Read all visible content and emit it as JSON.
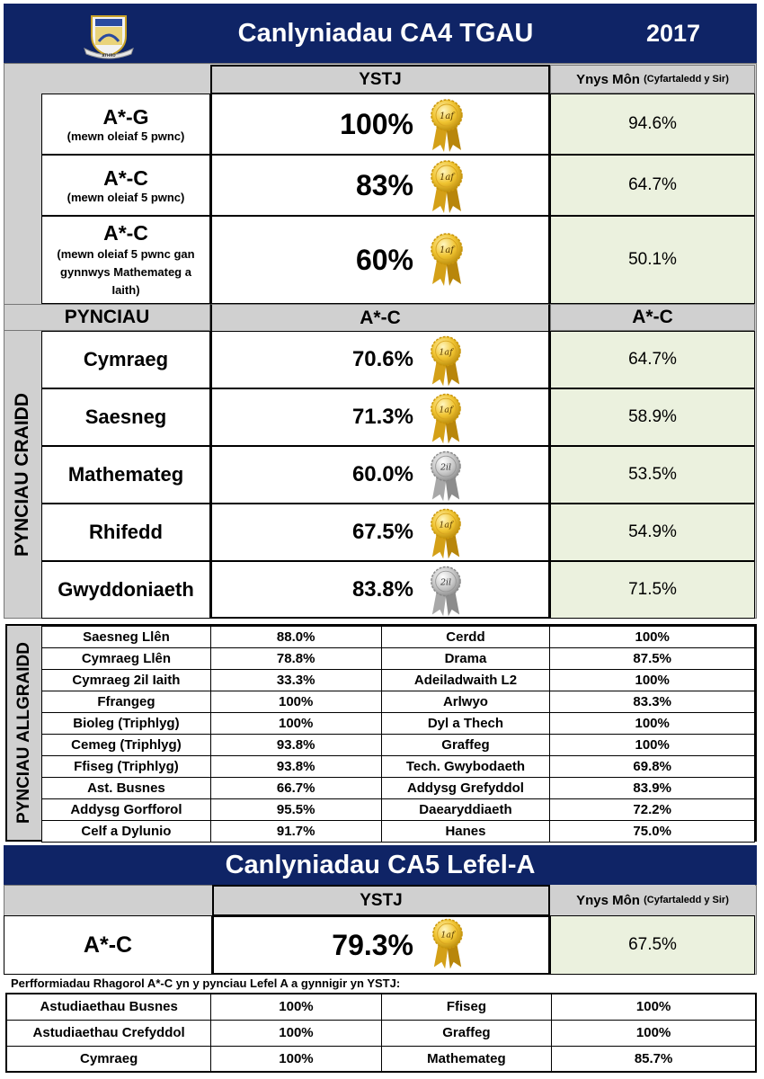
{
  "header": {
    "title": "Canlyniadau CA4 TGAU",
    "year": "2017",
    "crest_text": "ATHRO"
  },
  "gcse": {
    "col_school": "YSTJ",
    "col_county_main": "Ynys Môn",
    "col_county_sub": "(Cyfartaledd y Sir)",
    "rows": [
      {
        "title": "A*-G",
        "sub": "(mewn oleiaf 5 pwnc)",
        "value": "100%",
        "rank": "1af",
        "county": "94.6%"
      },
      {
        "title": "A*-C",
        "sub": "(mewn oleiaf 5 pwnc)",
        "value": "83%",
        "rank": "1af",
        "county": "64.7%"
      },
      {
        "title": "A*-C",
        "sub": "(mewn oleiaf 5 pwnc gan gynnwys Mathemateg a Iaith)",
        "value": "60%",
        "rank": "1af",
        "county": "50.1%"
      }
    ]
  },
  "core": {
    "col_subjects": "PYNCIAU",
    "col_school": "A*-C",
    "col_county": "A*-C",
    "side_label": "PYNCIAU CRAIDD",
    "rows": [
      {
        "subject": "Cymraeg",
        "value": "70.6%",
        "rank": "1af",
        "medal": "gold",
        "county": "64.7%"
      },
      {
        "subject": "Saesneg",
        "value": "71.3%",
        "rank": "1af",
        "medal": "gold",
        "county": "58.9%"
      },
      {
        "subject": "Mathemateg",
        "value": "60.0%",
        "rank": "2il",
        "medal": "silver",
        "county": "53.5%"
      },
      {
        "subject": "Rhifedd",
        "value": "67.5%",
        "rank": "1af",
        "medal": "gold",
        "county": "54.9%"
      },
      {
        "subject": "Gwyddoniaeth",
        "value": "83.8%",
        "rank": "2il",
        "medal": "silver",
        "county": "71.5%"
      }
    ]
  },
  "extra": {
    "side_label": "PYNCIAU ALLGRAIDD",
    "rows": [
      {
        "s1": "Saesneg Llên",
        "v1": "88.0%",
        "s2": "Cerdd",
        "v2": "100%"
      },
      {
        "s1": "Cymraeg Llên",
        "v1": "78.8%",
        "s2": "Drama",
        "v2": "87.5%"
      },
      {
        "s1": "Cymraeg 2il Iaith",
        "v1": "33.3%",
        "s2": "Adeiladwaith L2",
        "v2": "100%"
      },
      {
        "s1": "Ffrangeg",
        "v1": "100%",
        "s2": "Arlwyo",
        "v2": "83.3%"
      },
      {
        "s1": "Bioleg (Triphlyg)",
        "v1": "100%",
        "s2": "Dyl a Thech",
        "v2": "100%"
      },
      {
        "s1": "Cemeg (Triphlyg)",
        "v1": "93.8%",
        "s2": "Graffeg",
        "v2": "100%"
      },
      {
        "s1": "Ffiseg (Triphlyg)",
        "v1": "93.8%",
        "s2": "Tech. Gwybodaeth",
        "v2": "69.8%"
      },
      {
        "s1": "Ast. Busnes",
        "v1": "66.7%",
        "s2": "Addysg Grefyddol",
        "v2": "83.9%"
      },
      {
        "s1": "Addysg Gorfforol",
        "v1": "95.5%",
        "s2": "Daearyddiaeth",
        "v2": "72.2%"
      },
      {
        "s1": "Celf a Dylunio",
        "v1": "91.7%",
        "s2": "Hanes",
        "v2": "75.0%"
      }
    ]
  },
  "alevel": {
    "title": "Canlyniadau CA5 Lefel-A",
    "col_school": "YSTJ",
    "col_county_main": "Ynys Môn",
    "col_county_sub": "(Cyfartaledd y Sir)",
    "row_title": "A*-C",
    "value": "79.3%",
    "rank": "1af",
    "county": "67.5%",
    "note": "Perfformiadau Rhagorol A*-C yn y pynciau Lefel A a gynnigir yn YSTJ:",
    "rows": [
      {
        "s1": "Astudiaethau Busnes",
        "v1": "100%",
        "s2": "Ffiseg",
        "v2": "100%"
      },
      {
        "s1": "Astudiaethau Crefyddol",
        "v1": "100%",
        "s2": "Graffeg",
        "v2": "100%"
      },
      {
        "s1": "Cymraeg",
        "v1": "100%",
        "s2": "Mathemateg",
        "v2": "85.7%"
      }
    ]
  },
  "colors": {
    "navy": "#0f2466",
    "grey": "#d0d0d0",
    "green": "#ebf1de",
    "gold": "#e8b923",
    "silver": "#b8b8b8"
  }
}
